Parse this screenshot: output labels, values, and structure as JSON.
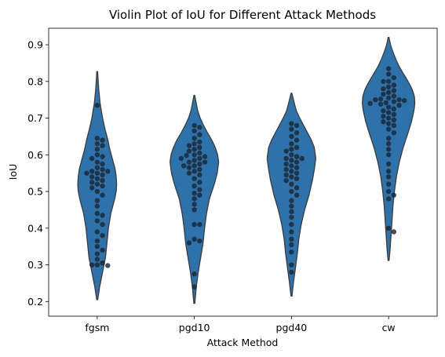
{
  "chart_data": {
    "type": "violin",
    "title": "Violin Plot of IoU for Different Attack Methods",
    "xlabel": "Attack Method",
    "ylabel": "IoU",
    "ylim": [
      0.16,
      0.945
    ],
    "yticks": [
      0.2,
      0.3,
      0.4,
      0.5,
      0.6,
      0.7,
      0.8,
      0.9
    ],
    "ytick_labels": [
      "0.2",
      "0.3",
      "0.4",
      "0.5",
      "0.6",
      "0.7",
      "0.8",
      "0.9"
    ],
    "categories": [
      "fgsm",
      "pgd10",
      "pgd40",
      "cw"
    ],
    "violin_color": "#2e72ab",
    "edge_color": "#3c3c3c",
    "point_color": "#1c2733",
    "grid": false,
    "legend": "none",
    "series": [
      {
        "category": "fgsm",
        "range": [
          0.205,
          0.827
        ],
        "profile": [
          [
            0.205,
            0.01
          ],
          [
            0.24,
            0.05
          ],
          [
            0.28,
            0.11
          ],
          [
            0.32,
            0.17
          ],
          [
            0.36,
            0.2
          ],
          [
            0.4,
            0.23
          ],
          [
            0.44,
            0.28
          ],
          [
            0.48,
            0.36
          ],
          [
            0.5,
            0.39
          ],
          [
            0.52,
            0.4
          ],
          [
            0.54,
            0.39
          ],
          [
            0.56,
            0.37
          ],
          [
            0.58,
            0.33
          ],
          [
            0.6,
            0.29
          ],
          [
            0.62,
            0.25
          ],
          [
            0.64,
            0.22
          ],
          [
            0.67,
            0.16
          ],
          [
            0.7,
            0.11
          ],
          [
            0.74,
            0.06
          ],
          [
            0.78,
            0.03
          ],
          [
            0.827,
            0.008
          ]
        ],
        "points": [
          0.735,
          0.645,
          0.64,
          0.63,
          0.625,
          0.615,
          0.6,
          0.595,
          0.59,
          0.58,
          0.575,
          0.565,
          0.56,
          0.555,
          0.555,
          0.55,
          0.55,
          0.545,
          0.54,
          0.535,
          0.53,
          0.525,
          0.52,
          0.515,
          0.51,
          0.5,
          0.49,
          0.475,
          0.46,
          0.44,
          0.435,
          0.42,
          0.41,
          0.39,
          0.38,
          0.365,
          0.35,
          0.34,
          0.33,
          0.315,
          0.305,
          0.3,
          0.3,
          0.298
        ]
      },
      {
        "category": "pgd10",
        "range": [
          0.195,
          0.762
        ],
        "profile": [
          [
            0.195,
            0.01
          ],
          [
            0.24,
            0.04
          ],
          [
            0.28,
            0.08
          ],
          [
            0.32,
            0.13
          ],
          [
            0.36,
            0.18
          ],
          [
            0.4,
            0.21
          ],
          [
            0.44,
            0.25
          ],
          [
            0.48,
            0.31
          ],
          [
            0.52,
            0.41
          ],
          [
            0.55,
            0.47
          ],
          [
            0.58,
            0.5
          ],
          [
            0.6,
            0.48
          ],
          [
            0.62,
            0.43
          ],
          [
            0.64,
            0.36
          ],
          [
            0.66,
            0.27
          ],
          [
            0.68,
            0.19
          ],
          [
            0.7,
            0.12
          ],
          [
            0.72,
            0.07
          ],
          [
            0.74,
            0.04
          ],
          [
            0.762,
            0.008
          ]
        ],
        "points": [
          0.68,
          0.675,
          0.665,
          0.655,
          0.645,
          0.635,
          0.63,
          0.625,
          0.62,
          0.615,
          0.61,
          0.605,
          0.6,
          0.598,
          0.595,
          0.59,
          0.59,
          0.585,
          0.58,
          0.58,
          0.575,
          0.57,
          0.57,
          0.565,
          0.56,
          0.555,
          0.55,
          0.545,
          0.535,
          0.525,
          0.515,
          0.505,
          0.495,
          0.49,
          0.48,
          0.465,
          0.45,
          0.41,
          0.41,
          0.37,
          0.365,
          0.36,
          0.275,
          0.24
        ]
      },
      {
        "category": "pgd40",
        "range": [
          0.215,
          0.768
        ],
        "profile": [
          [
            0.215,
            0.01
          ],
          [
            0.25,
            0.04
          ],
          [
            0.29,
            0.08
          ],
          [
            0.33,
            0.12
          ],
          [
            0.37,
            0.15
          ],
          [
            0.41,
            0.2
          ],
          [
            0.45,
            0.27
          ],
          [
            0.49,
            0.36
          ],
          [
            0.53,
            0.43
          ],
          [
            0.56,
            0.47
          ],
          [
            0.59,
            0.5
          ],
          [
            0.62,
            0.47
          ],
          [
            0.64,
            0.41
          ],
          [
            0.66,
            0.33
          ],
          [
            0.68,
            0.25
          ],
          [
            0.7,
            0.17
          ],
          [
            0.72,
            0.1
          ],
          [
            0.74,
            0.06
          ],
          [
            0.768,
            0.008
          ]
        ],
        "points": [
          0.685,
          0.68,
          0.67,
          0.66,
          0.65,
          0.64,
          0.63,
          0.62,
          0.615,
          0.61,
          0.6,
          0.595,
          0.59,
          0.59,
          0.585,
          0.58,
          0.575,
          0.57,
          0.565,
          0.56,
          0.555,
          0.55,
          0.545,
          0.54,
          0.535,
          0.53,
          0.52,
          0.51,
          0.5,
          0.49,
          0.475,
          0.46,
          0.445,
          0.43,
          0.41,
          0.39,
          0.37,
          0.355,
          0.335,
          0.3,
          0.28
        ]
      },
      {
        "category": "cw",
        "range": [
          0.312,
          0.92
        ],
        "profile": [
          [
            0.312,
            0.01
          ],
          [
            0.34,
            0.03
          ],
          [
            0.38,
            0.05
          ],
          [
            0.42,
            0.07
          ],
          [
            0.46,
            0.09
          ],
          [
            0.5,
            0.12
          ],
          [
            0.54,
            0.16
          ],
          [
            0.58,
            0.22
          ],
          [
            0.62,
            0.3
          ],
          [
            0.66,
            0.4
          ],
          [
            0.69,
            0.47
          ],
          [
            0.72,
            0.52
          ],
          [
            0.74,
            0.54
          ],
          [
            0.76,
            0.53
          ],
          [
            0.78,
            0.48
          ],
          [
            0.8,
            0.4
          ],
          [
            0.82,
            0.31
          ],
          [
            0.84,
            0.22
          ],
          [
            0.86,
            0.15
          ],
          [
            0.88,
            0.09
          ],
          [
            0.9,
            0.04
          ],
          [
            0.92,
            0.008
          ]
        ],
        "points": [
          0.835,
          0.82,
          0.81,
          0.8,
          0.8,
          0.79,
          0.785,
          0.78,
          0.775,
          0.77,
          0.765,
          0.76,
          0.755,
          0.752,
          0.75,
          0.75,
          0.748,
          0.745,
          0.742,
          0.74,
          0.738,
          0.735,
          0.73,
          0.725,
          0.72,
          0.715,
          0.71,
          0.705,
          0.7,
          0.695,
          0.69,
          0.685,
          0.68,
          0.67,
          0.66,
          0.645,
          0.63,
          0.615,
          0.6,
          0.575,
          0.555,
          0.54,
          0.52,
          0.5,
          0.49,
          0.48,
          0.4,
          0.39
        ]
      }
    ]
  }
}
